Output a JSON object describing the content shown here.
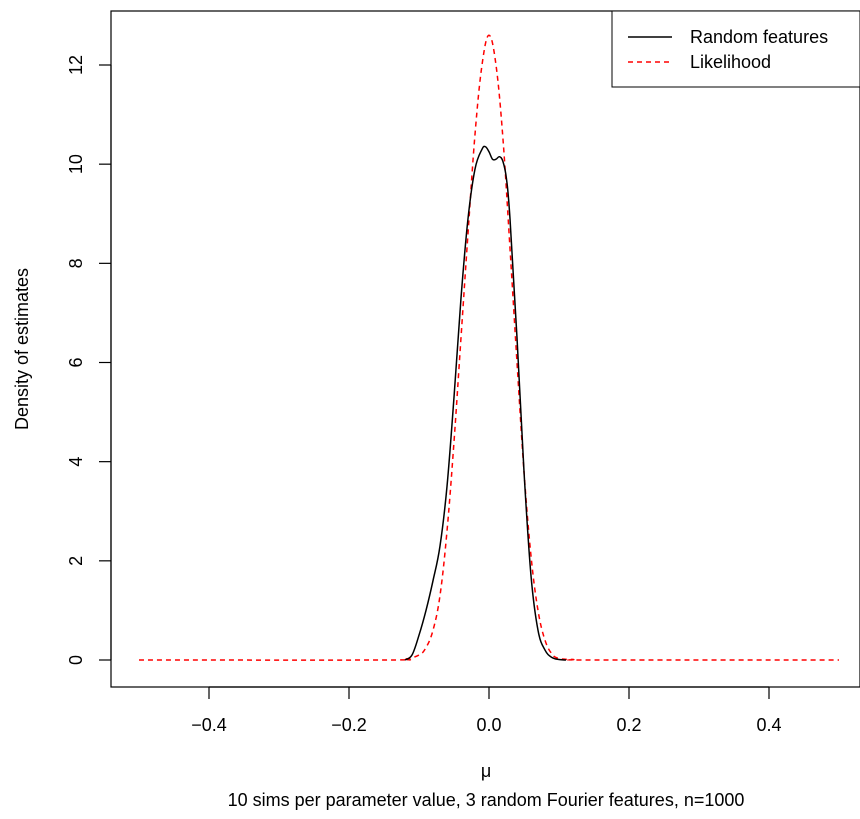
{
  "chart_data": {
    "type": "line",
    "xlabel": "μ",
    "ylabel": "Density of estimates",
    "subtitle": "10 sims per parameter value, 3 random Fourier features, n=1000",
    "xlim": [
      -0.5,
      0.5
    ],
    "ylim": [
      0,
      12.6
    ],
    "x_ticks": [
      -0.4,
      -0.2,
      0.0,
      0.2,
      0.4
    ],
    "x_tick_labels": [
      "−0.4",
      "−0.2",
      "0.0",
      "0.2",
      "0.4"
    ],
    "y_ticks": [
      0,
      2,
      4,
      6,
      8,
      10,
      12
    ],
    "y_tick_labels": [
      "0",
      "2",
      "4",
      "6",
      "8",
      "10",
      "12"
    ],
    "grid": false,
    "legend_position": "top-right",
    "series": [
      {
        "name": "Random features",
        "color": "#000000",
        "dash": "solid",
        "x": [
          -0.12,
          -0.11,
          -0.1,
          -0.09,
          -0.08,
          -0.07,
          -0.06,
          -0.05,
          -0.04,
          -0.03,
          -0.02,
          -0.01,
          -0.005,
          0.0,
          0.005,
          0.01,
          0.015,
          0.02,
          0.025,
          0.03,
          0.04,
          0.05,
          0.06,
          0.07,
          0.08,
          0.09,
          0.1,
          0.11
        ],
        "y": [
          0.0,
          0.1,
          0.5,
          1.0,
          1.6,
          2.3,
          3.5,
          5.3,
          7.3,
          8.9,
          9.9,
          10.3,
          10.35,
          10.25,
          10.1,
          10.1,
          10.15,
          10.05,
          9.7,
          8.9,
          6.5,
          3.8,
          1.7,
          0.6,
          0.2,
          0.05,
          0.01,
          0.0
        ]
      },
      {
        "name": "Likelihood",
        "color": "#ff0000",
        "dash": "dashed",
        "x": [
          -0.5,
          -0.15,
          -0.12,
          -0.1,
          -0.09,
          -0.08,
          -0.07,
          -0.06,
          -0.05,
          -0.04,
          -0.03,
          -0.02,
          -0.01,
          0.0,
          0.01,
          0.02,
          0.03,
          0.04,
          0.05,
          0.06,
          0.07,
          0.08,
          0.09,
          0.1,
          0.12,
          0.15,
          0.5
        ],
        "y": [
          0.0,
          0.0,
          0.02,
          0.1,
          0.25,
          0.6,
          1.3,
          2.6,
          4.4,
          6.5,
          8.6,
          10.6,
          12.0,
          12.6,
          12.0,
          10.5,
          8.3,
          6.0,
          3.8,
          2.1,
          1.0,
          0.4,
          0.12,
          0.03,
          0.01,
          0.0,
          0.0
        ]
      }
    ]
  }
}
